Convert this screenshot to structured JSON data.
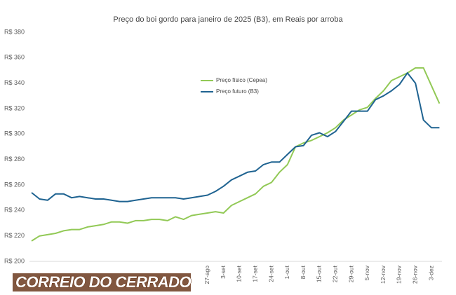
{
  "chart_data": {
    "type": "line",
    "title": "Preço do boi gordo para janeiro de 2025 (B3), em Reais por arroba",
    "categories": [
      null,
      null,
      null,
      null,
      null,
      null,
      null,
      null,
      null,
      null,
      null,
      null,
      null,
      null,
      null,
      null,
      null,
      null,
      null,
      null,
      null,
      null,
      "27-ago",
      null,
      "3-set",
      null,
      "10-set",
      null,
      "17-set",
      null,
      "24-set",
      null,
      "1-out",
      null,
      "8-out",
      null,
      "15-out",
      null,
      "22-out",
      null,
      "29-out",
      null,
      "5-nov",
      null,
      "12-nov",
      null,
      "19-nov",
      null,
      "26-nov",
      null,
      "3-dez",
      null
    ],
    "series": [
      {
        "name": "Preço físico (Cepea)",
        "color": "#92c956",
        "values": [
          216,
          220,
          221,
          222,
          224,
          225,
          225,
          227,
          228,
          229,
          231,
          231,
          230,
          232,
          232,
          233,
          233,
          232,
          235,
          233,
          236,
          237,
          238,
          239,
          238,
          244,
          247,
          250,
          253,
          259,
          262,
          270,
          276,
          290,
          293,
          295,
          298,
          301,
          305,
          311,
          315,
          319,
          321,
          328,
          334,
          342,
          345,
          348,
          352,
          352,
          338,
          324
        ]
      },
      {
        "name": "Preço futuro (B3)",
        "color": "#1f6391",
        "values": [
          254,
          249,
          248,
          253,
          253,
          250,
          251,
          250,
          249,
          249,
          248,
          247,
          247,
          248,
          249,
          250,
          250,
          250,
          250,
          249,
          250,
          251,
          252,
          255,
          259,
          264,
          267,
          270,
          271,
          276,
          278,
          278,
          284,
          290,
          291,
          299,
          301,
          298,
          302,
          310,
          318,
          318,
          318,
          327,
          330,
          334,
          339,
          348,
          340,
          311,
          305,
          305
        ]
      }
    ],
    "ylim": [
      200,
      380
    ],
    "yticks": [
      {
        "value": 200,
        "label": "R$ 200"
      },
      {
        "value": 220,
        "label": "R$ 220"
      },
      {
        "value": 240,
        "label": "R$ 240"
      },
      {
        "value": 260,
        "label": "R$ 260"
      },
      {
        "value": 280,
        "label": "R$ 280"
      },
      {
        "value": 300,
        "label": "R$ 300"
      },
      {
        "value": 320,
        "label": "R$ 320"
      },
      {
        "value": 340,
        "label": "R$ 340"
      },
      {
        "value": 360,
        "label": "R$ 360"
      },
      {
        "value": 380,
        "label": "R$ 380"
      }
    ],
    "grid": false,
    "watermark": "CORREIO DO CERRADO"
  }
}
